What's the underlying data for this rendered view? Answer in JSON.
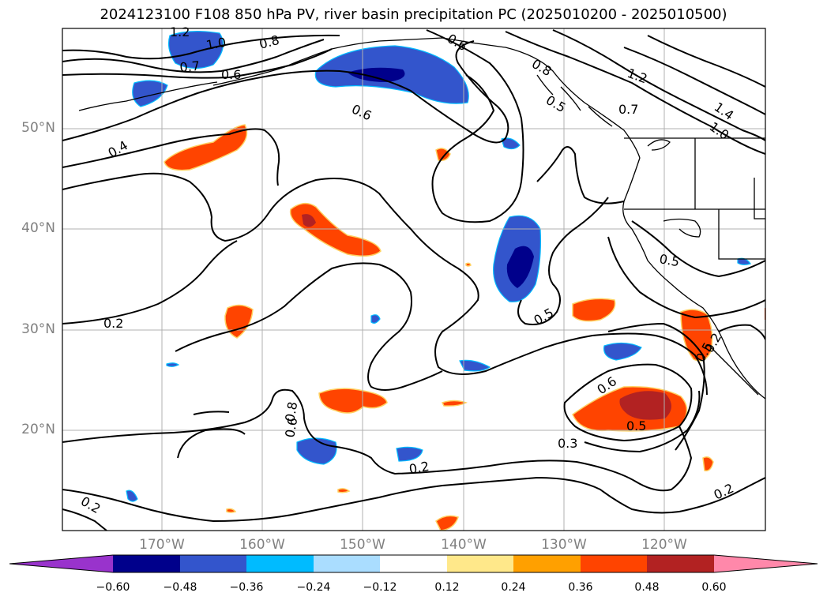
{
  "title": "2024123100 F108 850 hPa PV, river basin precipitation PC (2025010200 - 2025010500)",
  "map": {
    "lat_labels": [
      "50°N",
      "40°N",
      "30°N",
      "20°N"
    ],
    "lon_labels": [
      "170°W",
      "160°W",
      "150°W",
      "140°W",
      "130°W",
      "120°W"
    ],
    "contour_labels": [
      "1.2",
      "1.0",
      "0.8",
      "0.7",
      "0.6",
      "0.6",
      "0.6",
      "0.4",
      "0.8",
      "1.2",
      "1.4",
      "1.0",
      "0.7",
      "0.5",
      "0.5",
      "0.5",
      "0.6",
      "0.5",
      "0.3",
      "0.2",
      "0.2",
      "0.2",
      "0.2",
      "0.2",
      "0.8",
      "0.6",
      "0.5"
    ]
  },
  "colorbar": {
    "ticks": [
      "−0.60",
      "−0.48",
      "−0.36",
      "−0.24",
      "−0.12",
      "0.12",
      "0.24",
      "0.36",
      "0.48",
      "0.60"
    ],
    "colors": [
      "#9933cc",
      "#00008b",
      "#3355cc",
      "#00bbff",
      "#aaddff",
      "#ffffff",
      "#ffe88a",
      "#ffa000",
      "#ff4400",
      "#b22222",
      "#ff88aa"
    ]
  }
}
